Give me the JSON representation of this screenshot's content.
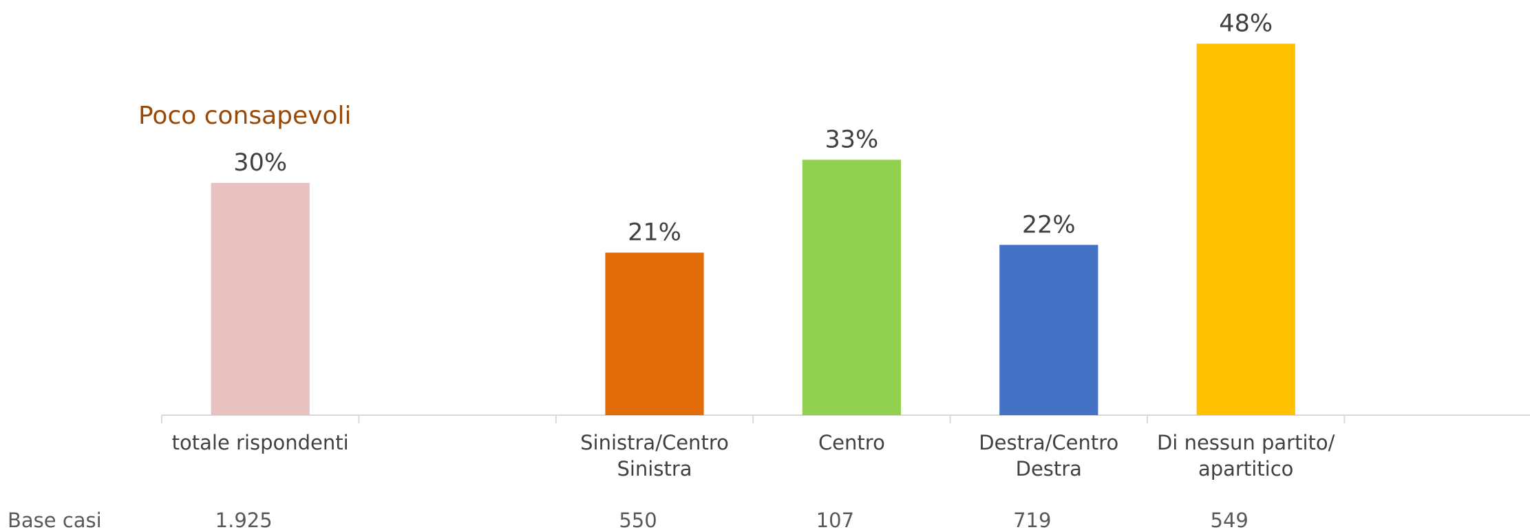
{
  "chart_data": {
    "type": "bar",
    "title": "Poco consapevoli",
    "categories": [
      "totale rispondenti",
      null,
      "Sinistra/Centro\nSinistra",
      "Centro",
      "Destra/Centro\nDestra",
      "Di nessun partito/\napartitico"
    ],
    "values": [
      30,
      null,
      21,
      33,
      22,
      48
    ],
    "value_labels": [
      "30%",
      null,
      "21%",
      "33%",
      "22%",
      "48%"
    ],
    "colors": [
      "#e8c1c1",
      null,
      "#e36c0a",
      "#92d050",
      "#4472c4",
      "#ffc000"
    ],
    "ylim": [
      0,
      50
    ],
    "base_label": "Base casi",
    "base_counts": [
      "1.925",
      null,
      "550",
      "107",
      "719",
      "549"
    ]
  }
}
